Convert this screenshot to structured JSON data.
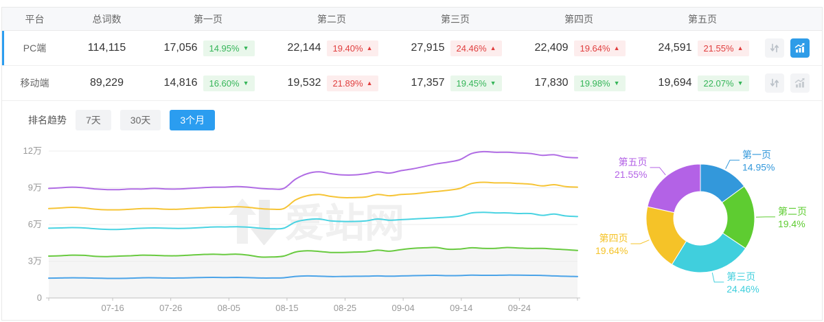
{
  "accent": "#2b9df0",
  "table": {
    "columns": [
      "平台",
      "总词数",
      "第一页",
      "第二页",
      "第三页",
      "第四页",
      "第五页"
    ],
    "rows": [
      {
        "platform": "PC端",
        "total": "114,115",
        "selected": true,
        "chart_active": true,
        "pages": [
          {
            "count": "17,056",
            "pct": "14.95%",
            "dir": "down"
          },
          {
            "count": "22,144",
            "pct": "19.40%",
            "dir": "up"
          },
          {
            "count": "27,915",
            "pct": "24.46%",
            "dir": "up"
          },
          {
            "count": "22,409",
            "pct": "19.64%",
            "dir": "up"
          },
          {
            "count": "24,591",
            "pct": "21.55%",
            "dir": "up"
          }
        ]
      },
      {
        "platform": "移动端",
        "total": "89,229",
        "selected": false,
        "chart_active": false,
        "pages": [
          {
            "count": "14,816",
            "pct": "16.60%",
            "dir": "down"
          },
          {
            "count": "19,532",
            "pct": "21.89%",
            "dir": "up"
          },
          {
            "count": "17,357",
            "pct": "19.45%",
            "dir": "down"
          },
          {
            "count": "17,830",
            "pct": "19.98%",
            "dir": "down"
          },
          {
            "count": "19,694",
            "pct": "22.07%",
            "dir": "down"
          }
        ]
      }
    ]
  },
  "trend": {
    "title": "排名趋势",
    "tabs": [
      {
        "id": "7d",
        "label": "7天",
        "active": false
      },
      {
        "id": "30d",
        "label": "30天",
        "active": false
      },
      {
        "id": "3m",
        "label": "3个月",
        "active": true
      }
    ]
  },
  "watermark": "爱站网",
  "chart_data": [
    {
      "type": "line",
      "title": "排名趋势 3个月",
      "x_labels": [
        "07-16",
        "07-26",
        "08-05",
        "08-15",
        "08-25",
        "09-04",
        "09-14",
        "09-24"
      ],
      "x_label_days": [
        11,
        21,
        31,
        41,
        51,
        61,
        71,
        81
      ],
      "total_days": 91,
      "y_ticks": [
        "0",
        "3万",
        "6万",
        "9万",
        "12万"
      ],
      "ylim_wan": [
        0,
        12
      ],
      "values_unit": "万 (10,000 keywords)",
      "grid": true,
      "series": [
        {
          "name": "series-purple",
          "color": "#b06ce4",
          "values": [
            8.95,
            9.0,
            9.05,
            9.0,
            8.9,
            8.85,
            8.85,
            8.9,
            8.9,
            8.95,
            8.9,
            8.9,
            8.95,
            9.0,
            9.05,
            9.05,
            9.1,
            9.05,
            8.95,
            8.9,
            8.95,
            9.7,
            10.15,
            10.3,
            10.15,
            10.05,
            10.05,
            10.15,
            10.3,
            10.2,
            10.4,
            10.55,
            10.75,
            10.95,
            11.1,
            11.3,
            11.8,
            11.95,
            11.9,
            11.9,
            11.85,
            11.8,
            11.65,
            11.7,
            11.5,
            11.45
          ]
        },
        {
          "name": "series-yellow",
          "color": "#f6c435",
          "values": [
            7.3,
            7.35,
            7.4,
            7.35,
            7.25,
            7.2,
            7.2,
            7.25,
            7.3,
            7.3,
            7.25,
            7.25,
            7.3,
            7.35,
            7.4,
            7.4,
            7.45,
            7.4,
            7.3,
            7.25,
            7.3,
            8.0,
            8.35,
            8.45,
            8.3,
            8.2,
            8.2,
            8.25,
            8.45,
            8.35,
            8.45,
            8.5,
            8.6,
            8.7,
            8.8,
            8.95,
            9.35,
            9.45,
            9.4,
            9.4,
            9.35,
            9.3,
            9.15,
            9.25,
            9.1,
            9.05
          ]
        },
        {
          "name": "series-cyan",
          "color": "#49d3e2",
          "values": [
            5.7,
            5.72,
            5.75,
            5.72,
            5.65,
            5.6,
            5.6,
            5.65,
            5.7,
            5.72,
            5.7,
            5.68,
            5.7,
            5.75,
            5.8,
            5.8,
            5.82,
            5.78,
            5.7,
            5.65,
            5.7,
            6.2,
            6.4,
            6.45,
            6.3,
            6.25,
            6.25,
            6.3,
            6.45,
            6.35,
            6.4,
            6.45,
            6.5,
            6.55,
            6.6,
            6.7,
            6.95,
            7.0,
            6.95,
            6.95,
            6.9,
            6.9,
            6.75,
            6.85,
            6.7,
            6.65
          ]
        },
        {
          "name": "series-green",
          "color": "#68ca3f",
          "area": "#f5f5f5",
          "values": [
            3.42,
            3.45,
            3.5,
            3.48,
            3.4,
            3.38,
            3.42,
            3.45,
            3.5,
            3.48,
            3.45,
            3.45,
            3.5,
            3.55,
            3.58,
            3.55,
            3.58,
            3.5,
            3.35,
            3.35,
            3.42,
            3.75,
            3.85,
            3.8,
            3.72,
            3.72,
            3.75,
            3.78,
            3.9,
            3.82,
            3.95,
            4.05,
            4.1,
            4.12,
            3.98,
            4.0,
            4.1,
            4.05,
            4.05,
            4.12,
            4.08,
            4.05,
            4.05,
            4.0,
            3.95,
            3.88
          ]
        },
        {
          "name": "series-blue",
          "color": "#4aa3e8",
          "values": [
            1.62,
            1.63,
            1.65,
            1.64,
            1.62,
            1.6,
            1.6,
            1.62,
            1.65,
            1.65,
            1.63,
            1.63,
            1.65,
            1.67,
            1.68,
            1.67,
            1.68,
            1.66,
            1.63,
            1.63,
            1.65,
            1.76,
            1.8,
            1.78,
            1.75,
            1.76,
            1.77,
            1.78,
            1.8,
            1.78,
            1.8,
            1.82,
            1.84,
            1.85,
            1.82,
            1.83,
            1.86,
            1.85,
            1.85,
            1.87,
            1.86,
            1.85,
            1.84,
            1.8,
            1.77,
            1.75
          ]
        }
      ]
    },
    {
      "type": "pie",
      "title": "页面分布",
      "donut": true,
      "segments": [
        {
          "label": "第一页",
          "pct_label": "14.95%",
          "value": 14.95,
          "color": "#3398db"
        },
        {
          "label": "第二页",
          "pct_label": "19.4%",
          "value": 19.4,
          "color": "#5ecc31"
        },
        {
          "label": "第三页",
          "pct_label": "24.46%",
          "value": 24.46,
          "color": "#40cfdd"
        },
        {
          "label": "第四页",
          "pct_label": "19.64%",
          "value": 19.64,
          "color": "#f5c328"
        },
        {
          "label": "第五页",
          "pct_label": "21.55%",
          "value": 21.55,
          "color": "#b362e6"
        }
      ]
    }
  ]
}
